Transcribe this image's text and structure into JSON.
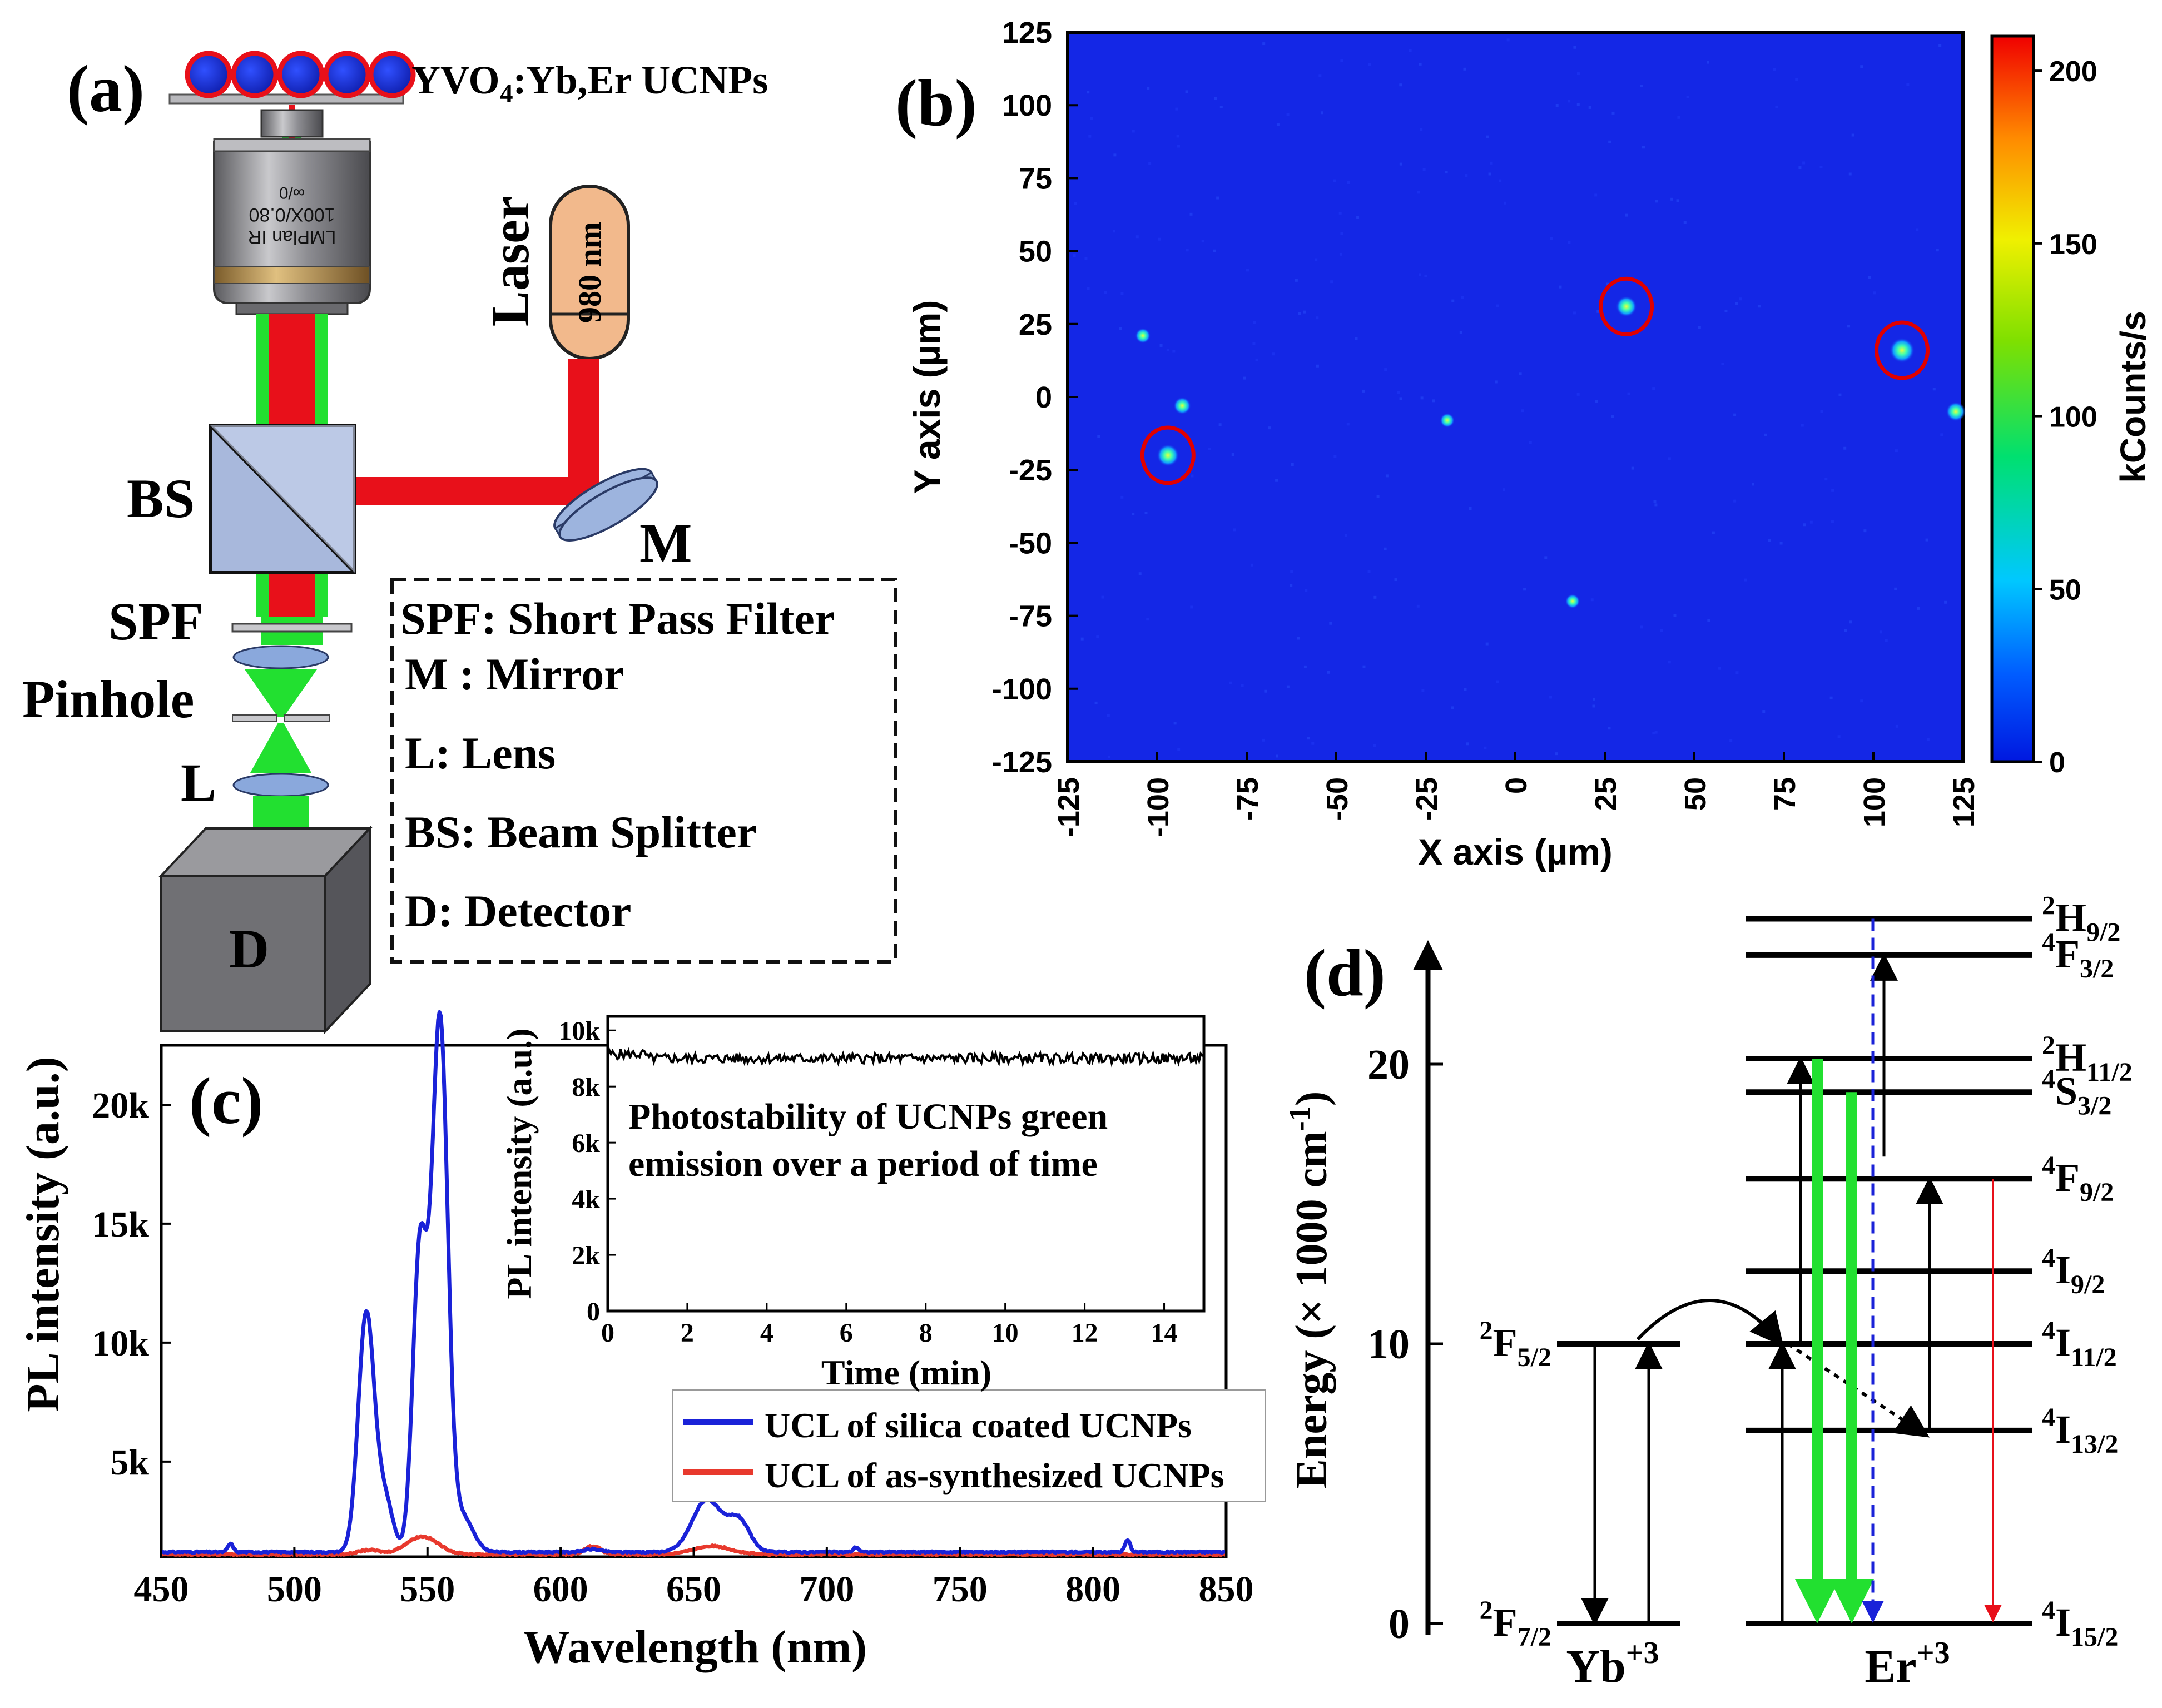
{
  "panel_labels": {
    "a": "(a)",
    "b": "(b)",
    "c": "(c)",
    "d": "(d)"
  },
  "colors": {
    "laser_red": "#e8101a",
    "emission_green": "#22e030",
    "background_blue": "#1427e6",
    "lens_blue": "#9db4de",
    "detector_gray": "#707074",
    "laser_tube": "#f2b98c",
    "silica_line": "#1a22d8",
    "as_synth_line": "#e8392d",
    "marker_red": "#e00000"
  },
  "setup": {
    "sample_label": "YVO",
    "sample_sub": "4",
    "sample_rest": ":Yb,Er UCNPs",
    "laser_label": "Laser",
    "laser_wavelength": "980 nm",
    "objective_text": [
      "LMPlan IR",
      "100X/0.80",
      "∞/0"
    ],
    "bs": "BS",
    "m": "M",
    "spf": "SPF",
    "pinhole": "Pinhole",
    "l": "L",
    "d": "D",
    "legend": [
      "SPF: Short Pass Filter",
      "M : Mirror",
      "L: Lens",
      "BS: Beam Splitter",
      "D: Detector"
    ]
  },
  "chart_data": [
    {
      "id": "b",
      "type": "heatmap",
      "xlabel": "X axis (µm)",
      "ylabel": "Y axis (µm)",
      "xlim": [
        -125,
        125
      ],
      "ylim": [
        -125,
        125
      ],
      "xticks": [
        -125,
        -100,
        -75,
        -50,
        -25,
        0,
        25,
        50,
        75,
        100,
        125
      ],
      "yticks": [
        -125,
        -100,
        -75,
        -50,
        -25,
        0,
        25,
        50,
        75,
        100,
        125
      ],
      "colorbar": {
        "label": "kCounts/s",
        "range": [
          0,
          210
        ],
        "ticks": [
          0,
          50,
          100,
          150,
          200
        ]
      },
      "background_value": 10,
      "spots": [
        {
          "x": -97,
          "y": -20,
          "v": 80,
          "circled": true
        },
        {
          "x": 31,
          "y": 31,
          "v": 70,
          "circled": true
        },
        {
          "x": 108,
          "y": 16,
          "v": 100,
          "circled": true
        },
        {
          "x": -93,
          "y": -3,
          "v": 45,
          "circled": false
        },
        {
          "x": 123,
          "y": -5,
          "v": 60,
          "circled": false
        },
        {
          "x": -104,
          "y": 21,
          "v": 30,
          "circled": false
        },
        {
          "x": -19,
          "y": -8,
          "v": 25,
          "circled": false
        },
        {
          "x": 16,
          "y": -70,
          "v": 25,
          "circled": false
        }
      ]
    },
    {
      "id": "c",
      "type": "line",
      "xlabel": "Wavelength (nm)",
      "ylabel": "PL intensity (a.u.)",
      "xlim": [
        450,
        850
      ],
      "ylim": [
        1000,
        22500
      ],
      "xticks": [
        450,
        500,
        550,
        600,
        650,
        700,
        750,
        800,
        850
      ],
      "yticks": [
        5000,
        10000,
        15000,
        20000
      ],
      "ytick_labels": [
        "5k",
        "10k",
        "15k",
        "20k"
      ],
      "series": [
        {
          "name": "UCL of silica coated UCNPs",
          "color": "#1a22d8",
          "baseline": 1200,
          "peaks": [
            [
              527,
              10000,
              3.0
            ],
            [
              534,
              2200,
              3.0
            ],
            [
              547,
              12000,
              2.6
            ],
            [
              552,
              4500,
              3.0
            ],
            [
              555,
              19500,
              2.8
            ],
            [
              563,
              1500,
              4.0
            ],
            [
              612,
              120,
              3.0
            ],
            [
              655,
              2200,
              5.5
            ],
            [
              667,
              1300,
              4.0
            ],
            [
              476,
              350,
              1.0
            ],
            [
              711,
              200,
              1.0
            ],
            [
              813,
              500,
              1.0
            ]
          ]
        },
        {
          "name": "UCL of as-synthesized UCNPs",
          "color": "#e8392d",
          "baseline": 1100,
          "peaks": [
            [
              528,
              180,
              4.0
            ],
            [
              548,
              750,
              6.0
            ],
            [
              612,
              350,
              3.0
            ],
            [
              657,
              350,
              7.0
            ]
          ]
        }
      ]
    },
    {
      "id": "c-inset",
      "type": "line",
      "xlabel": "Time (min)",
      "ylabel": "PL intensity (a.u.)",
      "xlim": [
        0,
        15
      ],
      "ylim": [
        0,
        10500
      ],
      "xticks": [
        0,
        2,
        4,
        6,
        8,
        10,
        12,
        14
      ],
      "yticks": [
        0,
        2000,
        4000,
        6000,
        8000,
        10000
      ],
      "ytick_labels": [
        "0",
        "2k",
        "4k",
        "6k",
        "8k",
        "10k"
      ],
      "series": [
        {
          "name": "green emission",
          "color": "#000000",
          "mean": 9000,
          "noise": 180
        }
      ],
      "annotation": [
        "Photostability of UCNPs green",
        "emission over a period of time"
      ]
    },
    {
      "id": "d",
      "type": "diagram",
      "ylabel": "Energy (× 1000 cm",
      "ylabel_sup": "-1",
      "ylabel_end": ")",
      "ylim": [
        0,
        25
      ],
      "yticks": [
        0,
        10,
        20
      ],
      "yb_label": "Yb",
      "yb_sup": "+3",
      "er_label": "Er",
      "er_sup": "+3",
      "yb_levels": [
        {
          "energy": 0,
          "pre": "2",
          "main": "F",
          "sub": "7/2"
        },
        {
          "energy": 10,
          "pre": "2",
          "main": "F",
          "sub": "5/2"
        }
      ],
      "er_levels": [
        {
          "energy": 0,
          "pre": "4",
          "main": "I",
          "sub": "15/2"
        },
        {
          "energy": 6.9,
          "pre": "4",
          "main": "I",
          "sub": "13/2"
        },
        {
          "energy": 10,
          "pre": "4",
          "main": "I",
          "sub": "11/2"
        },
        {
          "energy": 12.6,
          "pre": "4",
          "main": "I",
          "sub": "9/2"
        },
        {
          "energy": 15.9,
          "pre": "4",
          "main": "F",
          "sub": "9/2"
        },
        {
          "energy": 19.0,
          "pre": "4",
          "main": "S",
          "sub": "3/2"
        },
        {
          "energy": 20.2,
          "pre": "2",
          "main": "H",
          "sub": "11/2"
        },
        {
          "energy": 23.9,
          "pre": "4",
          "main": "F",
          "sub": "3/2"
        },
        {
          "energy": 25.2,
          "pre": "2",
          "main": "H",
          "sub": "9/2"
        }
      ]
    }
  ]
}
